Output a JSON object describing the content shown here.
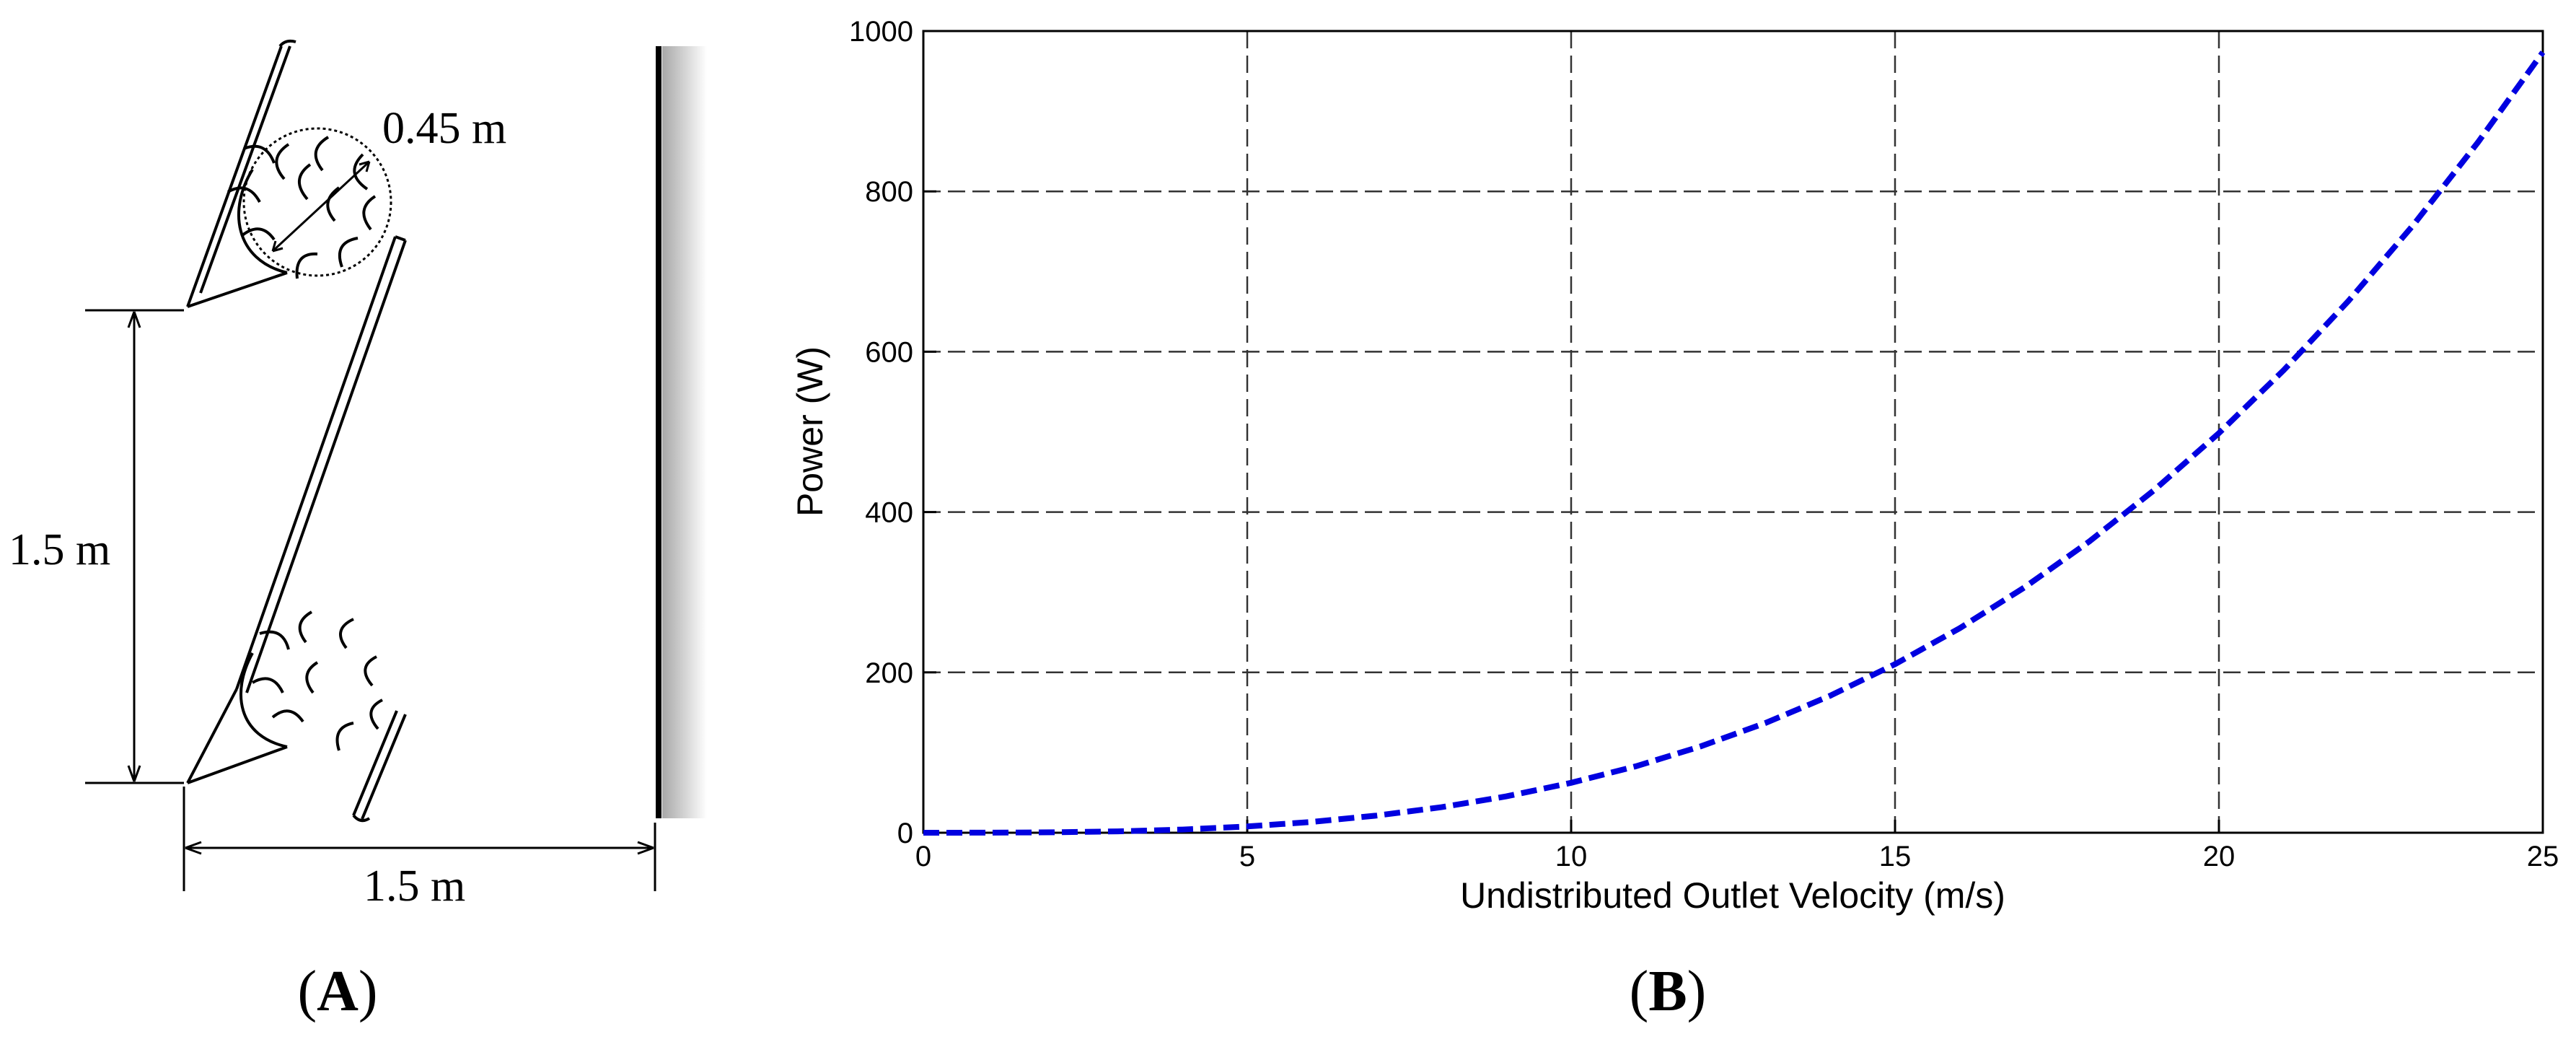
{
  "panel_a": {
    "label": "A",
    "dim_turbine_diameter": "0.45 m",
    "dim_vertical_spacing": "1.5 m",
    "dim_horizontal_spacing": "1.5 m"
  },
  "panel_b": {
    "label": "B"
  },
  "colors": {
    "curve": "#0000e0",
    "axis": "#000000",
    "grid": "#333333",
    "wall_shade": "#c8c8c8"
  },
  "chart_data": {
    "type": "line",
    "title": "",
    "xlabel": "Undistributed Outlet Velocity (m/s)",
    "ylabel": "Power (W)",
    "xlim": [
      0,
      25
    ],
    "ylim": [
      0,
      1000
    ],
    "xticks": [
      "0",
      "5",
      "10",
      "15",
      "20",
      "25"
    ],
    "yticks": [
      "0",
      "200",
      "400",
      "600",
      "800",
      "1000"
    ],
    "grid": true,
    "line_style": "dashed",
    "series": [
      {
        "x": [
          0,
          1,
          2,
          3,
          4,
          5,
          6,
          7,
          8,
          9,
          10,
          11,
          12,
          13,
          14,
          15,
          16,
          17,
          18,
          19,
          20,
          21,
          22,
          23,
          24,
          25
        ],
        "y": [
          0,
          0.06,
          0.5,
          1.7,
          4.0,
          7.8,
          13.5,
          21.4,
          31.9,
          45.4,
          62.3,
          82.9,
          107.7,
          136.9,
          170.9,
          210.3,
          255.2,
          306.1,
          363.4,
          427.4,
          498.5,
          577.0,
          663.4,
          758.0,
          861.3,
          973.5
        ]
      }
    ]
  }
}
